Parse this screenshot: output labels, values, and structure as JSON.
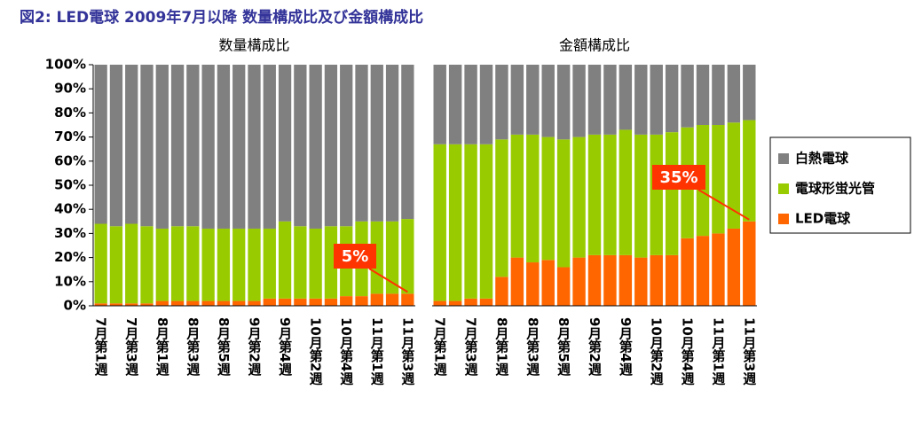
{
  "title": "図2: LED電球 2009年7月以降 数量構成比及び金額構成比",
  "chart_data": [
    {
      "type": "bar",
      "stacked": true,
      "title": "数量構成比",
      "categories": [
        "7月第1週",
        null,
        "7月第3週",
        null,
        "8月第1週",
        null,
        "8月第3週",
        null,
        "8月第5週",
        null,
        "9月第2週",
        null,
        "9月第4週",
        null,
        "10月第2週",
        null,
        "10月第4週",
        null,
        "11月第1週",
        null,
        "11月第3週"
      ],
      "series": [
        {
          "name": "LED電球",
          "color": "#ff6600",
          "values": [
            1,
            1,
            1,
            1,
            2,
            2,
            2,
            2,
            2,
            2,
            2,
            3,
            3,
            3,
            3,
            3,
            4,
            4,
            5,
            5,
            5
          ]
        },
        {
          "name": "電球形蛍光管",
          "color": "#99cc00",
          "values": [
            33,
            32,
            33,
            32,
            30,
            31,
            31,
            30,
            30,
            30,
            30,
            29,
            32,
            30,
            29,
            30,
            29,
            31,
            30,
            30,
            31
          ]
        },
        {
          "name": "白熱電球",
          "color": "#808080",
          "values": [
            66,
            67,
            66,
            67,
            68,
            67,
            67,
            68,
            68,
            68,
            68,
            68,
            65,
            67,
            68,
            67,
            67,
            65,
            65,
            65,
            64
          ]
        }
      ],
      "ylim": [
        0,
        100
      ],
      "yticks": [
        {
          "value": 0,
          "label": "0%"
        },
        {
          "value": 10,
          "label": "10%"
        },
        {
          "value": 20,
          "label": "20%"
        },
        {
          "value": 30,
          "label": "30%"
        },
        {
          "value": 40,
          "label": "40%"
        },
        {
          "value": 50,
          "label": "50%"
        },
        {
          "value": 60,
          "label": "60%"
        },
        {
          "value": 70,
          "label": "70%"
        },
        {
          "value": 80,
          "label": "80%"
        },
        {
          "value": 90,
          "label": "90%"
        },
        {
          "value": 100,
          "label": "100%"
        }
      ],
      "annotation": "5%"
    },
    {
      "type": "bar",
      "stacked": true,
      "title": "金額構成比",
      "categories": [
        "7月第1週",
        null,
        "7月第3週",
        null,
        "8月第1週",
        null,
        "8月第3週",
        null,
        "8月第5週",
        null,
        "9月第2週",
        null,
        "9月第4週",
        null,
        "10月第2週",
        null,
        "10月第4週",
        null,
        "11月第1週",
        null,
        "11月第3週"
      ],
      "series": [
        {
          "name": "LED電球",
          "color": "#ff6600",
          "values": [
            2,
            2,
            3,
            3,
            12,
            20,
            18,
            19,
            16,
            20,
            21,
            21,
            21,
            20,
            21,
            21,
            28,
            29,
            30,
            32,
            35
          ]
        },
        {
          "name": "電球形蛍光管",
          "color": "#99cc00",
          "values": [
            65,
            65,
            64,
            64,
            57,
            51,
            53,
            51,
            53,
            50,
            50,
            50,
            52,
            51,
            50,
            51,
            46,
            46,
            45,
            44,
            42
          ]
        },
        {
          "name": "白熱電球",
          "color": "#808080",
          "values": [
            33,
            33,
            33,
            33,
            31,
            29,
            29,
            30,
            31,
            30,
            29,
            29,
            27,
            29,
            29,
            28,
            26,
            25,
            25,
            24,
            23
          ]
        }
      ],
      "ylim": [
        0,
        100
      ],
      "annotation": "35%",
      "legend": "right"
    }
  ]
}
